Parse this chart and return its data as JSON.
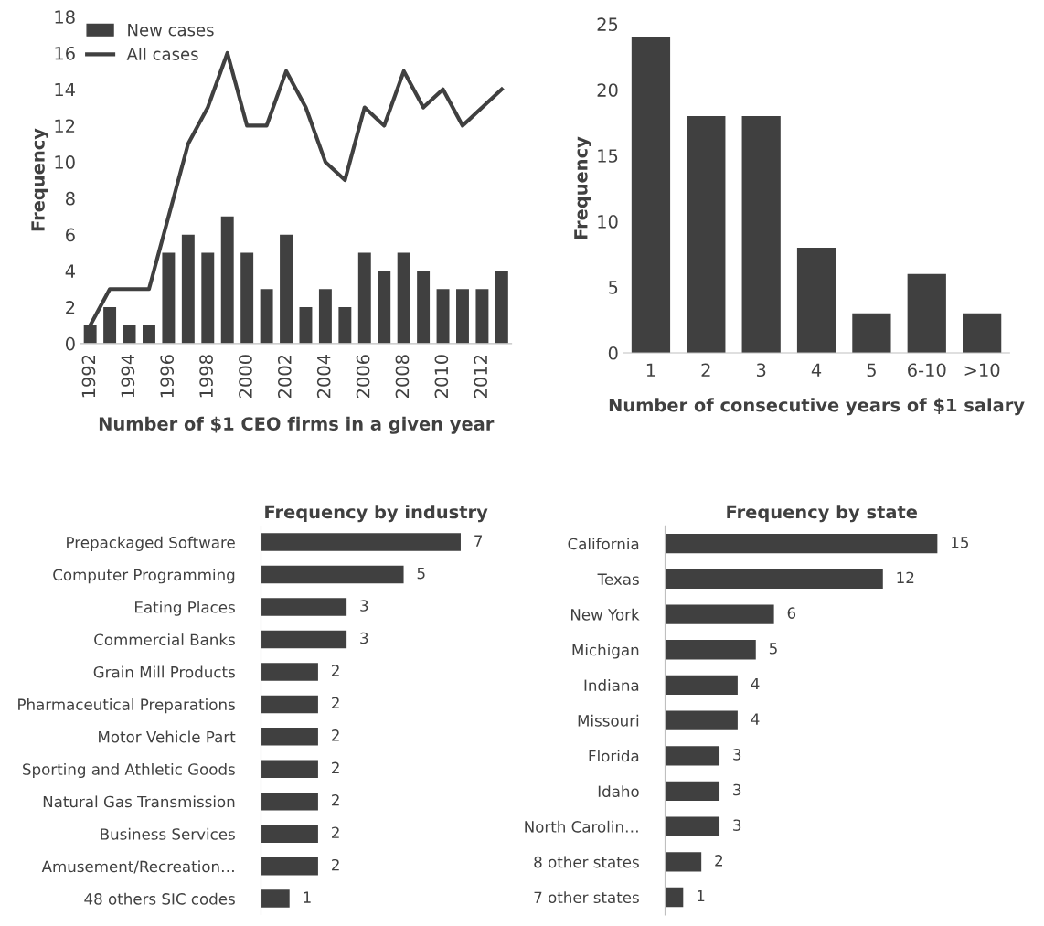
{
  "chart_data": [
    {
      "type": "bar",
      "xlabel": "Number of $1 CEO firms in a given year",
      "ylabel": "Frequency",
      "categories": [
        "1992",
        null,
        "1994",
        null,
        "1996",
        null,
        "1998",
        null,
        "2000",
        null,
        "2002",
        null,
        "2004",
        null,
        "2006",
        null,
        "2008",
        null,
        "2010",
        null,
        "2012",
        null
      ],
      "series": [
        {
          "name": "New cases",
          "color": "#404040",
          "values": [
            1,
            2,
            1,
            1,
            5,
            6,
            5,
            7,
            5,
            3,
            6,
            2,
            3,
            2,
            5,
            4,
            5,
            4,
            3,
            3,
            3,
            4
          ]
        },
        {
          "name": "All cases",
          "type": "line",
          "color": "#404040",
          "values": [
            1,
            3,
            3,
            3,
            7,
            11,
            13,
            16,
            12,
            12,
            15,
            13,
            10,
            9,
            13,
            12,
            15,
            13,
            14,
            12,
            13,
            14
          ]
        }
      ],
      "ylim": [
        0,
        18
      ],
      "yticks": [
        0,
        2,
        4,
        6,
        8,
        10,
        12,
        14,
        16,
        18
      ],
      "legend": "top left",
      "grid": false
    },
    {
      "type": "bar",
      "xlabel": "Number of consecutive years of $1 salary",
      "ylabel": "Frequency",
      "categories": [
        "1",
        "2",
        "3",
        "4",
        "5",
        "6-10",
        ">10"
      ],
      "series": [
        {
          "color": "#404040",
          "values": [
            24,
            18,
            18,
            8,
            3,
            6,
            3
          ]
        }
      ],
      "ylim": [
        0,
        25
      ],
      "yticks": [
        0,
        5,
        10,
        15,
        20,
        25
      ],
      "grid": false
    },
    {
      "type": "bar",
      "title": "Frequency by industry",
      "orientation": "horizontal",
      "data_labels": true,
      "tick_labels": "y",
      "categories": [
        "Prepackaged Software",
        "Computer Programming",
        "Eating Places",
        "Commercial Banks",
        "Grain Mill Products",
        "Pharmaceutical Preparations",
        "Motor Vehicle Part",
        "Sporting and Athletic Goods",
        "Natural Gas Transmission",
        "Business Services",
        "Amusement/Recreation…",
        "48 others SIC codes"
      ],
      "series": [
        {
          "color": "#404040",
          "values": [
            7,
            5,
            3,
            3,
            2,
            2,
            2,
            2,
            2,
            2,
            2,
            1
          ]
        }
      ]
    },
    {
      "type": "bar",
      "title": "Frequency by state",
      "orientation": "horizontal",
      "data_labels": true,
      "tick_labels": "y",
      "categories": [
        "California",
        "Texas",
        "New York",
        "Michigan",
        "Indiana",
        "Missouri",
        "Florida",
        "Idaho",
        "North Carolin…",
        "8 other states",
        "7 other states"
      ],
      "series": [
        {
          "color": "#404040",
          "values": [
            15,
            12,
            6,
            5,
            4,
            4,
            3,
            3,
            3,
            2,
            1
          ]
        }
      ]
    }
  ]
}
